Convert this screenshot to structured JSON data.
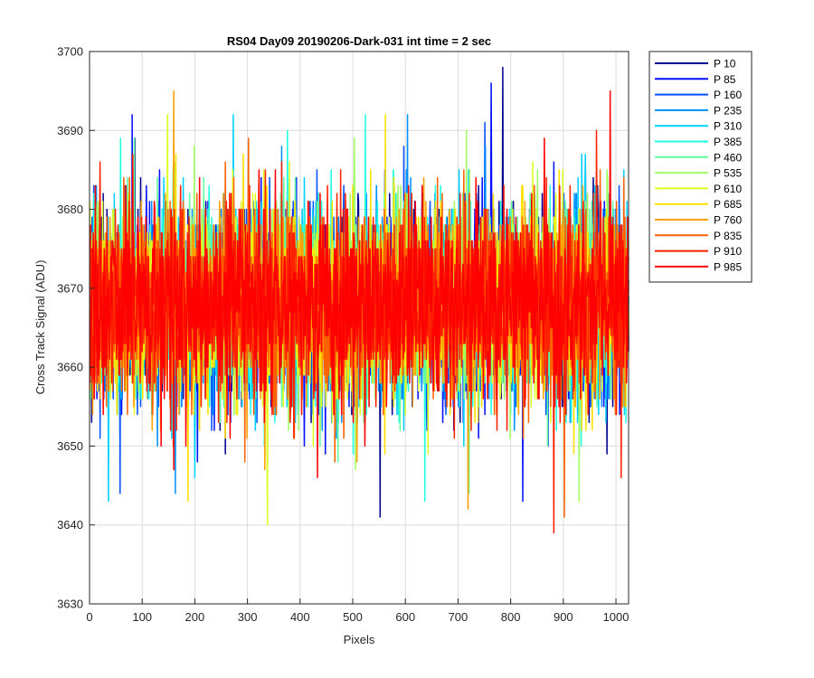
{
  "chart_data": {
    "type": "line",
    "title": "RS04 Day09 20190206-Dark-031 int time = 2 sec",
    "xlabel": "Pixels",
    "ylabel": "Cross Track Signal (ADU)",
    "xlim": [
      0,
      1024
    ],
    "ylim": [
      3630,
      3700
    ],
    "xticks": [
      0,
      100,
      200,
      300,
      400,
      500,
      600,
      700,
      800,
      900,
      1000
    ],
    "yticks": [
      3630,
      3640,
      3650,
      3660,
      3670,
      3680,
      3690,
      3700
    ],
    "grid": true,
    "legend_position": "outside-top-right",
    "n_points": 1024,
    "noise_mean": 3668,
    "noise_std": 6,
    "series": [
      {
        "name": "P 10",
        "color": "#00008f",
        "min": 3641,
        "max": 3698
      },
      {
        "name": "P 85",
        "color": "#0010ff",
        "min": 3643,
        "max": 3696
      },
      {
        "name": "P 160",
        "color": "#0050ff",
        "min": 3644,
        "max": 3691
      },
      {
        "name": "P 235",
        "color": "#0090ff",
        "min": 3644,
        "max": 3692
      },
      {
        "name": "P 310",
        "color": "#00d0ff",
        "min": 3643,
        "max": 3692
      },
      {
        "name": "P 385",
        "color": "#20ffdf",
        "min": 3643,
        "max": 3692
      },
      {
        "name": "P 460",
        "color": "#60ff9f",
        "min": 3644,
        "max": 3689
      },
      {
        "name": "P 535",
        "color": "#9fff60",
        "min": 3643,
        "max": 3690
      },
      {
        "name": "P 610",
        "color": "#dfff20",
        "min": 3640,
        "max": 3692
      },
      {
        "name": "P 685",
        "color": "#ffdf00",
        "min": 3643,
        "max": 3692
      },
      {
        "name": "P 760",
        "color": "#ffa000",
        "min": 3642,
        "max": 3695
      },
      {
        "name": "P 835",
        "color": "#ff6000",
        "min": 3641,
        "max": 3689
      },
      {
        "name": "P 910",
        "color": "#ff2000",
        "min": 3639,
        "max": 3690
      },
      {
        "name": "P 985",
        "color": "#ff0000",
        "min": 3646,
        "max": 3695
      }
    ]
  }
}
